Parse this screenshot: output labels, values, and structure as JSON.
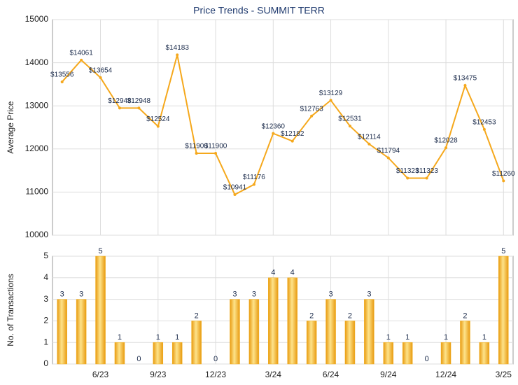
{
  "chart_data": [
    {
      "type": "line",
      "title": "Price Trends - SUMMIT TERR",
      "y_label": "Average Price",
      "color": "#f5a81c",
      "values": [
        13556,
        14061,
        13654,
        12948,
        12948,
        12524,
        14183,
        11900,
        11900,
        10941,
        11176,
        12360,
        12182,
        12763,
        13129,
        12531,
        12114,
        11794,
        11323,
        11323,
        12028,
        13475,
        12453,
        11260
      ],
      "value_labels": [
        "$13556",
        "$14061",
        "$13654",
        "$12948",
        "$12948",
        "$12524",
        "$14183",
        "$11900",
        "$11900",
        "$10941",
        "$11176",
        "$12360",
        "$12182",
        "$12763",
        "$13129",
        "$12531",
        "$12114",
        "$11794",
        "$11323",
        "$11323",
        "$12028",
        "$13475",
        "$12453",
        "$11260"
      ],
      "ylim": [
        10000,
        15000
      ],
      "yticks": [
        10000,
        11000,
        12000,
        13000,
        14000,
        15000
      ],
      "grid": true
    },
    {
      "type": "bar",
      "y_label": "No. of Transactions",
      "color": "#f2b01e",
      "categories": [
        null,
        null,
        "6/23",
        null,
        null,
        "9/23",
        null,
        null,
        "12/23",
        null,
        null,
        "3/24",
        null,
        null,
        "6/24",
        null,
        null,
        "9/24",
        null,
        null,
        "12/24",
        null,
        null,
        "3/25"
      ],
      "values": [
        3,
        3,
        5,
        1,
        0,
        1,
        1,
        2,
        0,
        3,
        3,
        4,
        4,
        2,
        3,
        2,
        3,
        1,
        1,
        0,
        1,
        2,
        1,
        5
      ],
      "ylim": [
        0,
        5
      ],
      "yticks": [
        0,
        1,
        2,
        3,
        4,
        5
      ],
      "grid": true
    }
  ]
}
